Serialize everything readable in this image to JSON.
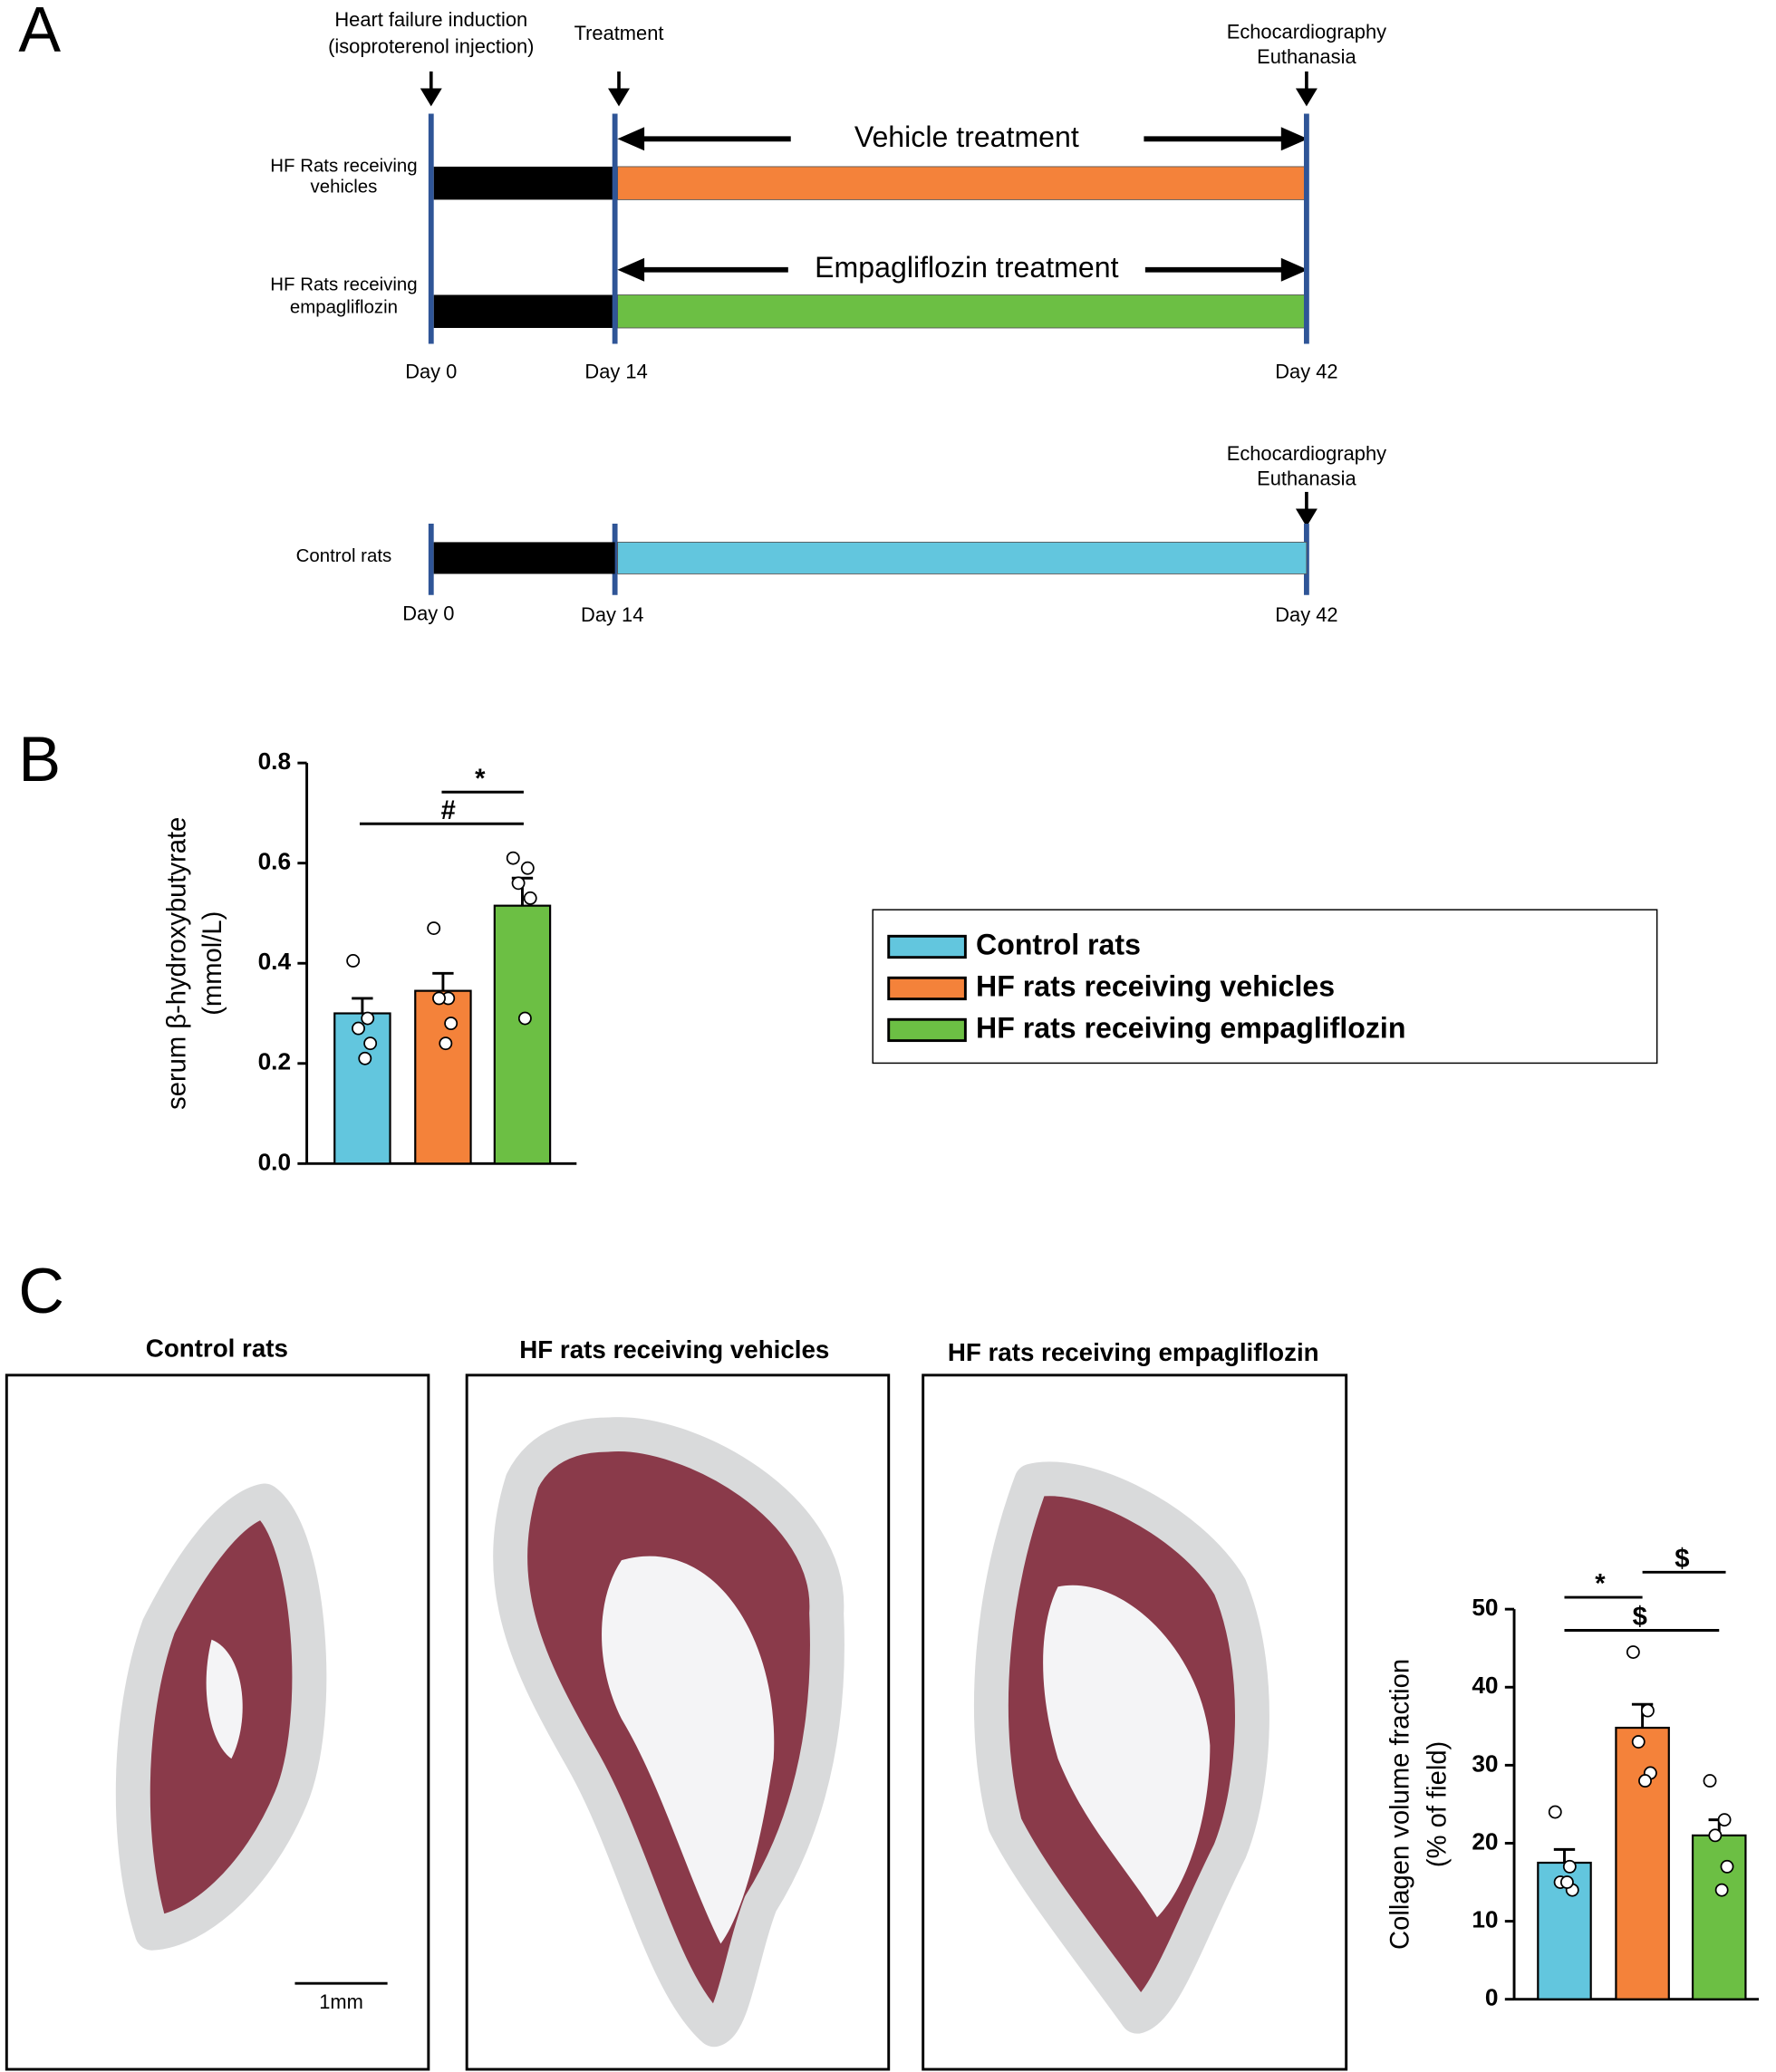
{
  "panel_a": {
    "label": "A",
    "events": [
      [
        "Heart failure induction",
        "(isoproterenol injection)"
      ],
      [
        "Treatment"
      ],
      [
        "Echocardiography",
        "Euthanasia"
      ]
    ],
    "groups": [
      {
        "lines": [
          "HF Rats receiving",
          "vehicles"
        ],
        "treatment": "Vehicle treatment",
        "color": "#f4823a"
      },
      {
        "lines": [
          "HF Rats receiving",
          "empagliflozin"
        ],
        "treatment": "Empagliflozin treatment",
        "color": "#6cbf44"
      }
    ],
    "days": [
      "Day 0",
      "Day 14",
      "Day 42"
    ],
    "control": {
      "label": "Control rats",
      "color": "#62c6de",
      "event": [
        "Echocardiography",
        "Euthanasia"
      ],
      "days": [
        "Day 0",
        "Day 14",
        "Day 42"
      ]
    }
  },
  "panel_b": {
    "label": "B"
  },
  "panel_c": {
    "label": "C",
    "titles": [
      "Control rats",
      "HF rats receiving vehicles",
      "HF rats receiving empagliflozin"
    ],
    "scale_bar": "1mm"
  },
  "chart_data": [
    {
      "type": "bar",
      "y_label": [
        "serum β-hydroxybutyrate",
        "(mmol/L)"
      ],
      "ylim": [
        0,
        0.8
      ],
      "yticks": [
        {
          "value": 0,
          "label": "0.0"
        },
        {
          "value": 0.2,
          "label": "0.2"
        },
        {
          "value": 0.4,
          "label": "0.4"
        },
        {
          "value": 0.6,
          "label": "0.6"
        },
        {
          "value": 0.8,
          "label": "0.8"
        }
      ],
      "legend": true,
      "series": [
        {
          "name": "Control rats",
          "color": "#62c6de",
          "values": [
            0.3
          ],
          "errors": [
            0.03
          ],
          "points": [
            0.405,
            0.29,
            0.27,
            0.24,
            0.21
          ]
        },
        {
          "name": "HF rats receiving vehicles",
          "color": "#f4823a",
          "values": [
            0.345
          ],
          "errors": [
            0.035
          ],
          "points": [
            0.47,
            0.33,
            0.33,
            0.28,
            0.24
          ]
        },
        {
          "name": "HF rats receiving empagliflozin",
          "color": "#6cbf44",
          "values": [
            0.515
          ],
          "errors": [
            0.055
          ],
          "points": [
            0.61,
            0.59,
            0.56,
            0.53,
            0.29
          ]
        }
      ],
      "annotations": [
        "*",
        "#"
      ]
    },
    {
      "type": "bar",
      "y_label": [
        "Collagen volume fraction",
        "(% of field)"
      ],
      "ylim": [
        0,
        50
      ],
      "yticks": [
        0,
        10,
        20,
        30,
        40,
        50
      ],
      "values": [
        17.5,
        34.8,
        21
      ],
      "errors": [
        1.7,
        3,
        2
      ],
      "colors": [
        "#62c6de",
        "#f4823a",
        "#6cbf44"
      ],
      "points": [
        [
          24,
          17,
          15,
          14,
          15
        ],
        [
          44.5,
          37,
          33,
          29,
          28
        ],
        [
          28,
          23,
          21,
          17,
          14
        ]
      ],
      "annotations": [
        "*",
        "$",
        "$"
      ]
    }
  ]
}
